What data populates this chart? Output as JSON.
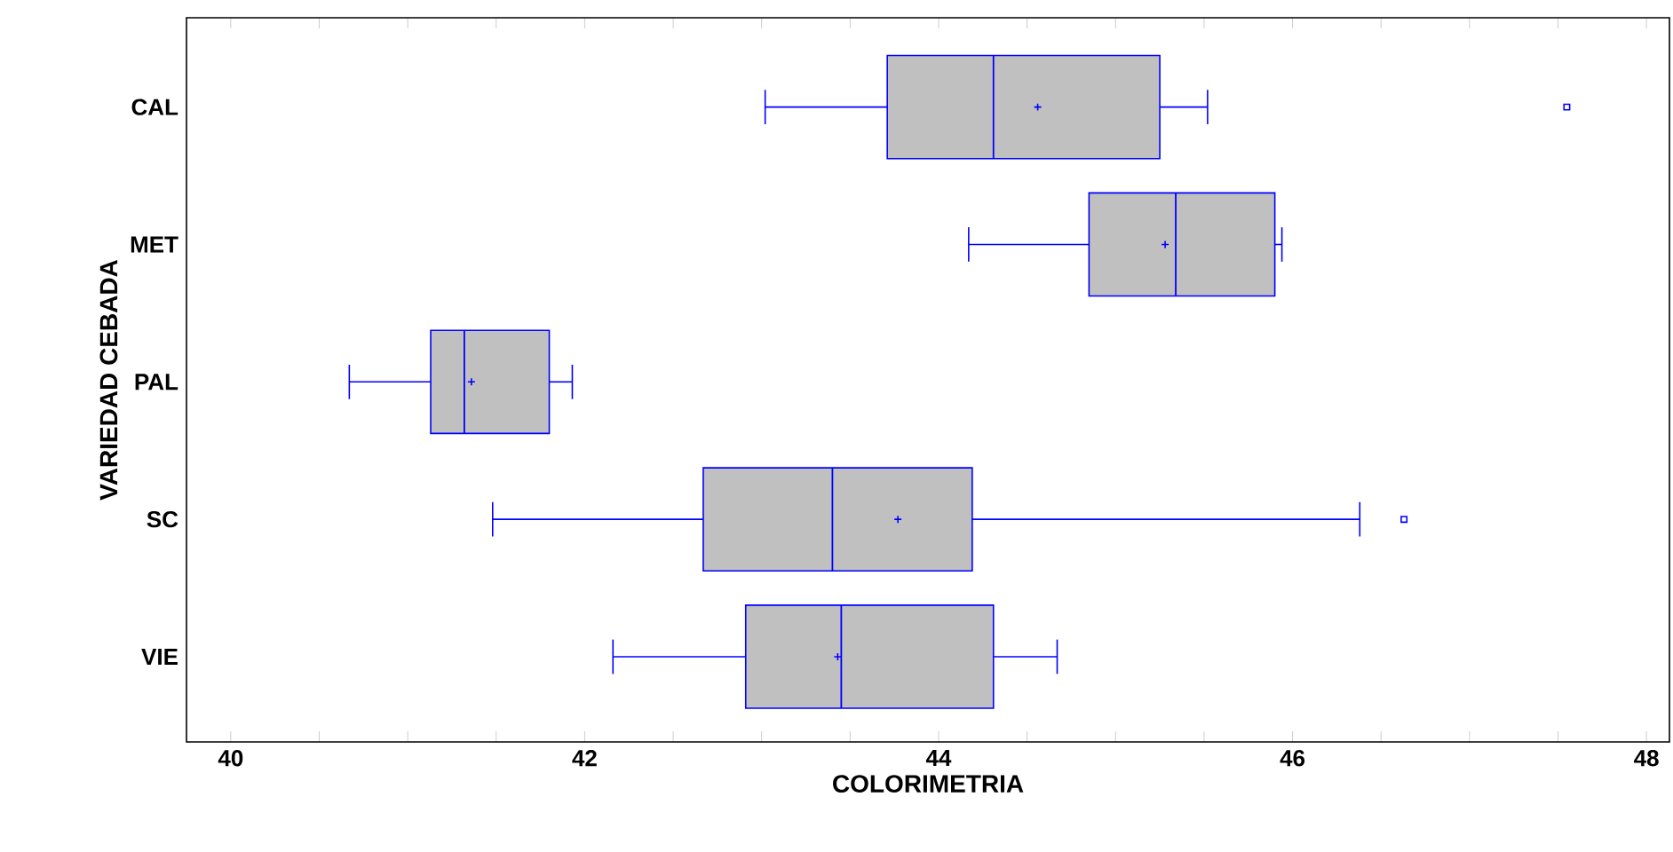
{
  "chart_data": {
    "type": "box",
    "orientation": "horizontal",
    "xlabel": "COLORIMETRIA",
    "ylabel": "VARIEDAD CEBADA",
    "categories": [
      "CAL",
      "MET",
      "PAL",
      "SC",
      "VIE"
    ],
    "color": "#c0c0c0",
    "boxes": [
      {
        "low": 43.02,
        "q1": 43.71,
        "median": 44.31,
        "q3": 45.25,
        "high": 45.52,
        "mean": 44.56,
        "outliers": [
          47.55
        ]
      },
      {
        "low": 44.17,
        "q1": 44.85,
        "median": 45.34,
        "q3": 45.9,
        "high": 45.94,
        "mean": 45.28
      },
      {
        "low": 40.67,
        "q1": 41.13,
        "median": 41.32,
        "q3": 41.8,
        "high": 41.93,
        "mean": 41.36
      },
      {
        "low": 41.48,
        "q1": 42.67,
        "median": 43.4,
        "q3": 44.19,
        "high": 46.38,
        "mean": 43.77,
        "outliers": [
          46.63
        ]
      },
      {
        "low": 42.16,
        "q1": 42.91,
        "median": 43.45,
        "q3": 44.31,
        "high": 44.67,
        "mean": 43.43
      }
    ],
    "xlim": [
      39.75,
      48.13
    ],
    "xticks": [
      40,
      {
        "value": 40.5,
        "label": null
      },
      {
        "value": 41,
        "label": null
      },
      {
        "value": 41.5,
        "label": null
      },
      42,
      {
        "value": 42.5,
        "label": null
      },
      {
        "value": 43,
        "label": null
      },
      {
        "value": 43.5,
        "label": null
      },
      44,
      {
        "value": 44.5,
        "label": null
      },
      {
        "value": 45,
        "label": null
      },
      {
        "value": 45.5,
        "label": null
      },
      46,
      {
        "value": 46.5,
        "label": null
      },
      {
        "value": 47,
        "label": null
      },
      {
        "value": 47.5,
        "label": null
      },
      48
    ]
  }
}
